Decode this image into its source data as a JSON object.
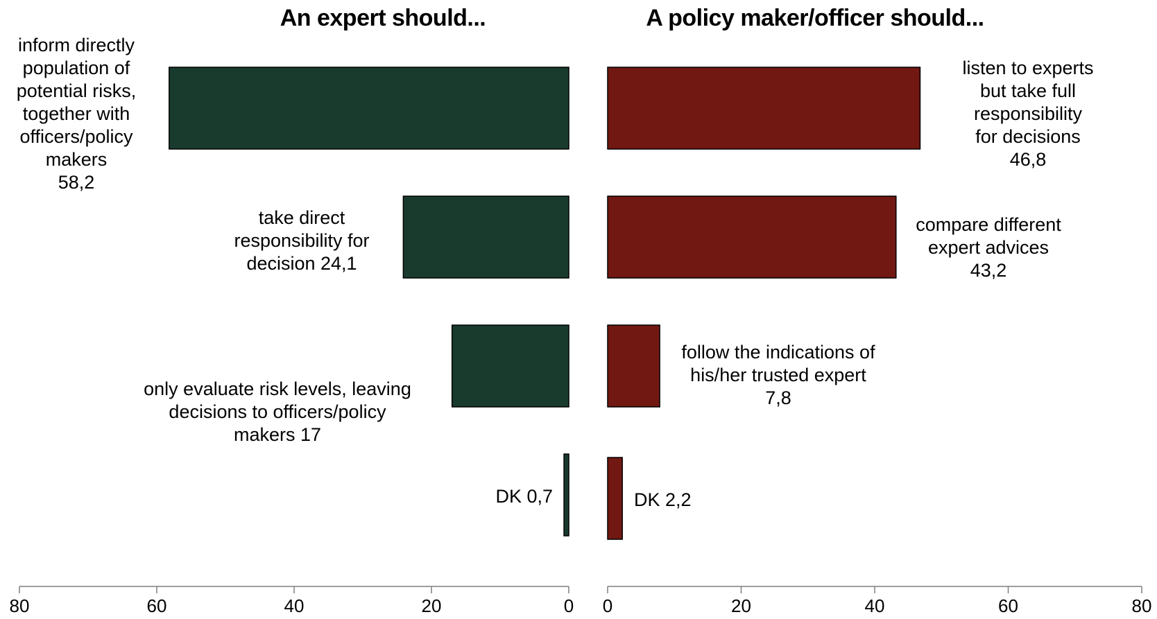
{
  "chart_data": [
    {
      "type": "bar",
      "orientation": "horizontal",
      "direction": "right-to-left",
      "title": "An expert should...",
      "color": "#193B2D",
      "xlim": [
        0,
        80
      ],
      "ticks": [
        80,
        60,
        40,
        20,
        0
      ],
      "categories": [
        "inform directly population of potential risks, together with officers/policy makers",
        "take direct responsibility for decision",
        "only evaluate risk levels, leaving decisions to officers/policy makers",
        "DK"
      ],
      "values": [
        58.2,
        24.1,
        17,
        0.7
      ],
      "labels": [
        [
          "inform directly",
          "population of",
          "potential risks,",
          "together with",
          "officers/policy",
          "makers",
          "58,2"
        ],
        [
          "take direct",
          "responsibility for",
          "decision 24,1"
        ],
        [
          "only evaluate risk levels, leaving",
          "decisions to officers/policy",
          "makers 17"
        ],
        [
          "DK 0,7"
        ]
      ]
    },
    {
      "type": "bar",
      "orientation": "horizontal",
      "direction": "left-to-right",
      "title": "A policy maker/officer should...",
      "color": "#721812",
      "xlim": [
        0,
        80
      ],
      "ticks": [
        0,
        20,
        40,
        60,
        80
      ],
      "categories": [
        "listen to experts but take full responsibility for decisions",
        "compare different expert advices",
        "follow the indications of his/her trusted expert",
        "DK"
      ],
      "values": [
        46.8,
        43.2,
        7.8,
        2.2
      ],
      "labels": [
        [
          "listen to experts",
          "but take full",
          "responsibility",
          "for decisions",
          "46,8"
        ],
        [
          "compare different",
          "expert advices",
          "43,2"
        ],
        [
          "follow the indications of",
          "his/her trusted expert",
          "7,8"
        ],
        [
          "DK 2,2"
        ]
      ]
    }
  ]
}
